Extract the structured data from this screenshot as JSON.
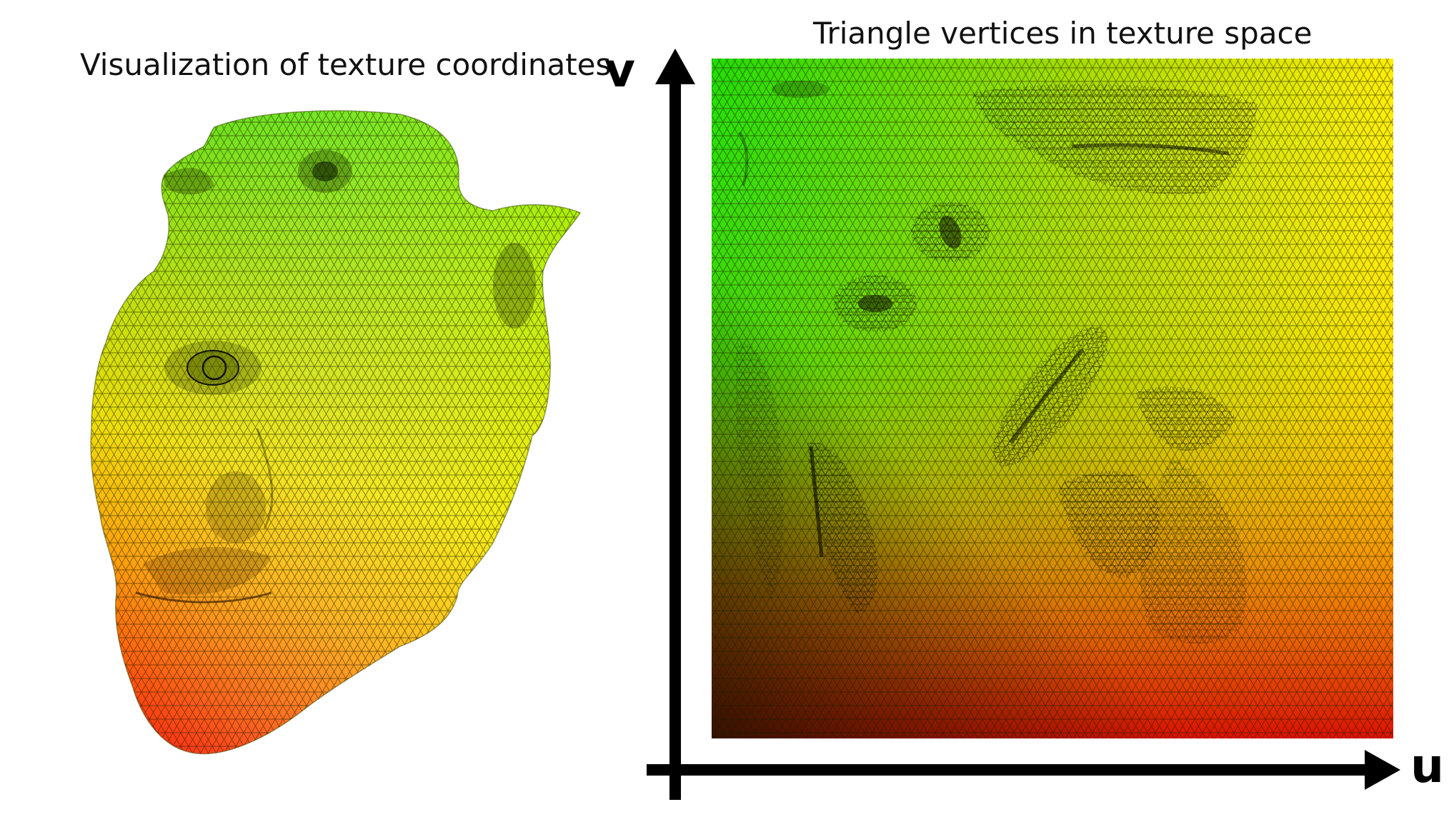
{
  "left_panel": {
    "title": "Visualization of texture coordinates"
  },
  "right_panel": {
    "title": "Triangle vertices in texture space",
    "axis_v_label": "v",
    "axis_u_label": "u"
  },
  "colors": {
    "gradient_top_left": "#22dd00",
    "gradient_top_right": "#ffee00",
    "gradient_bottom_left": "#442200",
    "gradient_bottom_right": "#ee1100",
    "mesh_line": "#1a1a00",
    "axis": "#000000"
  }
}
